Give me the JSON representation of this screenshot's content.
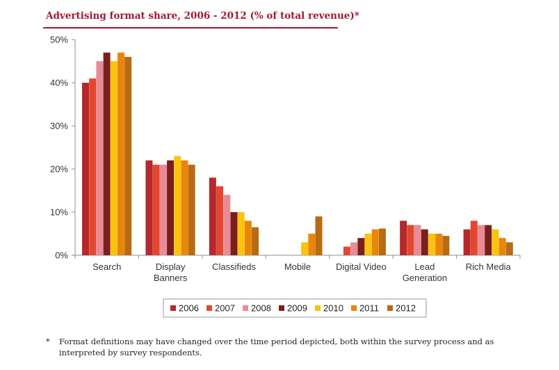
{
  "title": "Advertising format share, 2006 - 2012 (% of total revenue)*",
  "footnote": {
    "marker": "*",
    "text": "Format definitions may have changed over the time period depicted, both within the survey process and as interpreted by survey respondents."
  },
  "chart_data": {
    "type": "bar",
    "title": "Advertising format share, 2006 - 2012 (% of total revenue)*",
    "xlabel": "",
    "ylabel": "",
    "ylim": [
      0,
      50
    ],
    "yticks": [
      "0%",
      "10%",
      "20%",
      "30%",
      "40%",
      "50%"
    ],
    "categories": [
      [
        "Search"
      ],
      [
        "Display",
        "Banners"
      ],
      [
        "Classifieds"
      ],
      [
        "Mobile"
      ],
      [
        "Digital Video"
      ],
      [
        "Lead",
        "Generation"
      ],
      [
        "Rich Media"
      ]
    ],
    "series": [
      {
        "name": "2006",
        "color": "#b5282d",
        "values": [
          40,
          22,
          18,
          0,
          0,
          8,
          6
        ]
      },
      {
        "name": "2007",
        "color": "#e4472f",
        "values": [
          41,
          21,
          16,
          0,
          2,
          7,
          8
        ]
      },
      {
        "name": "2008",
        "color": "#e88b96",
        "values": [
          45,
          21,
          14,
          0,
          3,
          7,
          7
        ]
      },
      {
        "name": "2009",
        "color": "#7a1f1c",
        "values": [
          47,
          22,
          10,
          0,
          4,
          6,
          7
        ]
      },
      {
        "name": "2010",
        "color": "#fcc30d",
        "values": [
          45,
          23,
          10,
          3,
          5,
          5,
          6
        ]
      },
      {
        "name": "2011",
        "color": "#e8860c",
        "values": [
          47,
          22,
          8,
          5,
          6,
          5,
          4
        ]
      },
      {
        "name": "2012",
        "color": "#b86b12",
        "values": [
          46,
          21,
          6.5,
          9,
          6.2,
          4.5,
          3
        ]
      }
    ],
    "grid": false,
    "legend": "bottom-center"
  }
}
